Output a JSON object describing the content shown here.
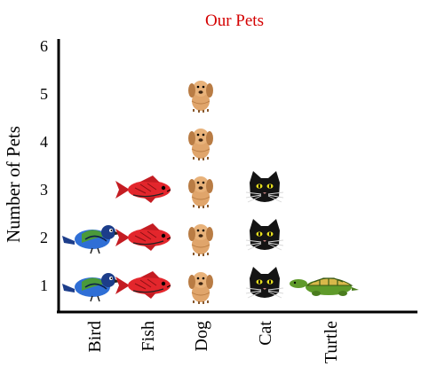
{
  "chart_data": {
    "type": "pictograph",
    "title": "Our Pets",
    "xlabel": "",
    "ylabel": "Number of Pets",
    "ylim": [
      0,
      6
    ],
    "yticks": [
      "1",
      "2",
      "3",
      "4",
      "5",
      "6"
    ],
    "grid": false,
    "categories": [
      "Bird",
      "Fish",
      "Dog",
      "Cat",
      "Turtle"
    ],
    "values": [
      2,
      3,
      5,
      3,
      1
    ],
    "icons": [
      "bird-icon",
      "fish-icon",
      "dog-icon",
      "cat-icon",
      "turtle-icon"
    ],
    "colors": {
      "title": "#d40000",
      "bird": "#2f6fd6",
      "fish": "#e3262c",
      "dog": "#e0a56b",
      "cat": "#141414",
      "turtle": "#5f9a2a"
    }
  }
}
